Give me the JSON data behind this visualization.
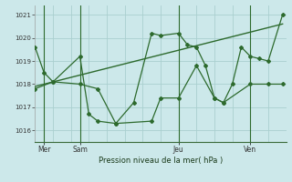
{
  "bg_color": "#cce8ea",
  "line_color": "#2d6a2d",
  "grid_color": "#aacfcf",
  "title": "Pression niveau de la mer( hPa )",
  "ylim": [
    1015.5,
    1021.4
  ],
  "yticks": [
    1016,
    1017,
    1018,
    1019,
    1020,
    1021
  ],
  "xlim": [
    0,
    14
  ],
  "day_positions": [
    0.5,
    2.5,
    8.0,
    12.0
  ],
  "day_labels": [
    "Mer",
    "Sam",
    "Jeu",
    "Ven"
  ],
  "vline_positions": [
    0.5,
    2.5,
    8.0,
    12.0
  ],
  "series1_x": [
    0.0,
    0.5,
    1.0,
    2.5,
    3.0,
    3.5,
    4.5,
    5.5,
    6.5,
    7.0,
    8.0,
    8.5,
    9.0,
    9.5,
    10.0,
    10.5,
    11.0,
    11.5,
    12.0,
    12.5,
    13.0,
    13.8
  ],
  "series1_y": [
    1019.6,
    1018.5,
    1018.1,
    1019.2,
    1016.7,
    1016.4,
    1016.3,
    1017.2,
    1020.2,
    1020.1,
    1020.2,
    1019.7,
    1019.6,
    1018.8,
    1017.4,
    1017.2,
    1018.0,
    1019.6,
    1019.2,
    1019.1,
    1019.0,
    1021.0
  ],
  "series2_x": [
    0.0,
    1.0,
    2.5,
    3.5,
    4.5,
    6.5,
    7.0,
    8.0,
    9.0,
    10.0,
    10.5,
    12.0,
    13.0,
    13.8
  ],
  "series2_y": [
    1017.8,
    1018.1,
    1018.0,
    1017.8,
    1016.3,
    1016.4,
    1017.4,
    1017.4,
    1018.8,
    1017.4,
    1017.2,
    1018.0,
    1018.0,
    1018.0
  ],
  "trend_x": [
    0.0,
    13.8
  ],
  "trend_y": [
    1017.9,
    1020.6
  ],
  "num_vgrid": 14
}
